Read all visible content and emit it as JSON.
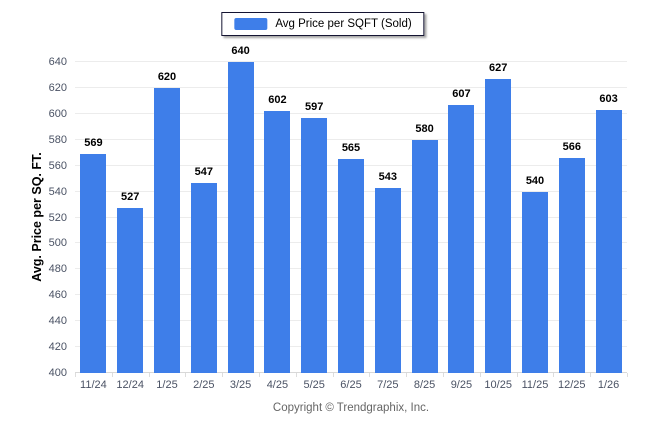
{
  "legend": {
    "label": "Avg Price per SQFT (Sold)"
  },
  "y_axis": {
    "title": "Avg. Price per SQ. FT."
  },
  "footer": {
    "copyright": "Copyright © Trendgraphix, Inc."
  },
  "colors": {
    "bar": "#3e7ee9",
    "grid": "#ececec",
    "axis": "#d8d8d8",
    "tick_label": "#4a5264",
    "value_label": "#000000",
    "footer_text": "#666666"
  },
  "chart_data": {
    "type": "bar",
    "categories": [
      "11/24",
      "12/24",
      "1/25",
      "2/25",
      "3/25",
      "4/25",
      "5/25",
      "6/25",
      "7/25",
      "8/25",
      "9/25",
      "10/25",
      "11/25",
      "12/25",
      "1/26"
    ],
    "values": [
      569,
      527,
      620,
      547,
      640,
      602,
      597,
      565,
      543,
      580,
      607,
      627,
      540,
      566,
      603
    ],
    "title": "",
    "xlabel": "",
    "ylabel": "Avg. Price per SQ. FT.",
    "legend": [
      "Avg Price per SQFT (Sold)"
    ],
    "legend_position": "top-center",
    "ylim": [
      400,
      640
    ],
    "yticks": [
      400,
      420,
      440,
      460,
      480,
      500,
      520,
      540,
      560,
      580,
      600,
      620,
      640
    ],
    "grid": true,
    "bar_color": "#3e7ee9",
    "value_labels_shown": true
  }
}
